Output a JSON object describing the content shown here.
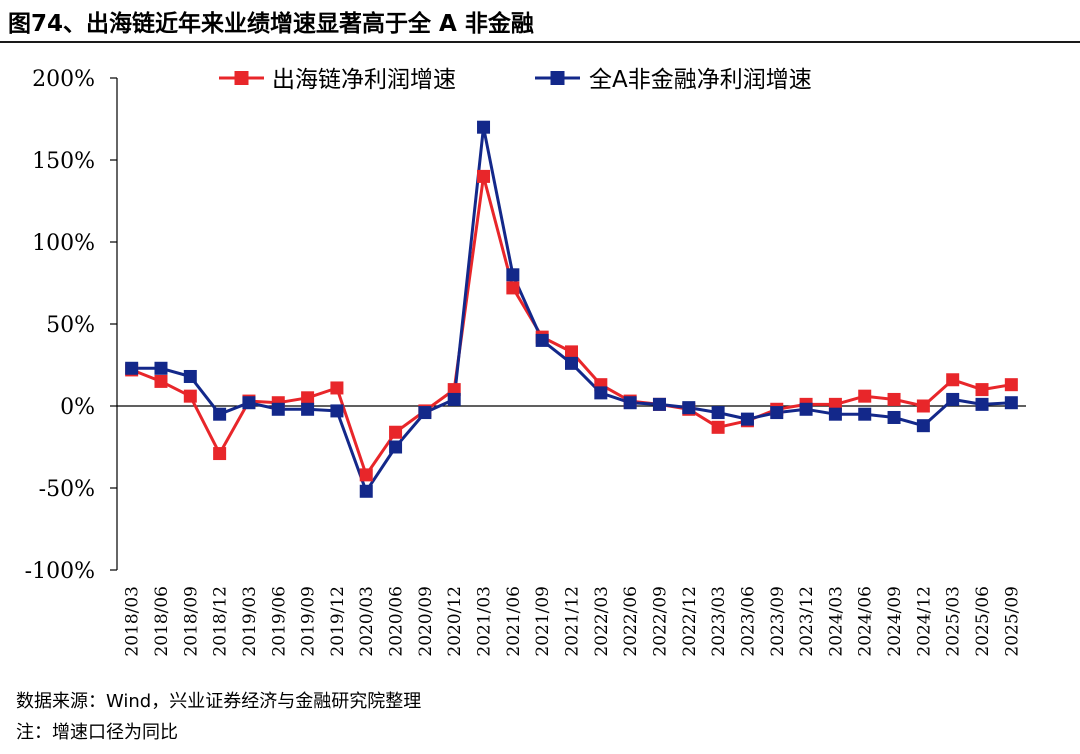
{
  "title": "图74、出海链近年来业绩增速显著高于全 A 非金融",
  "footer": {
    "source": "数据来源：Wind，兴业证券经济与金融研究院整理",
    "note": "注：增速口径为同比"
  },
  "chart_data": {
    "type": "line",
    "categories": [
      "2018/03",
      "2018/06",
      "2018/09",
      "2018/12",
      "2019/03",
      "2019/06",
      "2019/09",
      "2019/12",
      "2020/03",
      "2020/06",
      "2020/09",
      "2020/12",
      "2021/03",
      "2021/06",
      "2021/09",
      "2021/12",
      "2022/03",
      "2022/06",
      "2022/09",
      "2022/12",
      "2023/03",
      "2023/06",
      "2023/09",
      "2023/12",
      "2024/03",
      "2024/06",
      "2024/09",
      "2024/12",
      "2025/03",
      "2025/06",
      "2025/09"
    ],
    "y_ticks": [
      "200%",
      "150%",
      "100%",
      "50%",
      "0%",
      "-50%",
      "-100%"
    ],
    "ylim": [
      -100,
      200
    ],
    "grid": false,
    "legend_position": "top",
    "series": [
      {
        "name": "出海链净利润增速",
        "color": "#e8262a",
        "values": [
          22,
          15,
          6,
          -29,
          3,
          2,
          5,
          11,
          -42,
          -16,
          -3,
          10,
          140,
          72,
          42,
          33,
          13,
          3,
          1,
          -2,
          -13,
          -9,
          -2,
          1,
          1,
          6,
          4,
          0,
          16,
          10,
          13
        ]
      },
      {
        "name": "全A非金融净利润增速",
        "color": "#13288a",
        "values": [
          23,
          23,
          18,
          -5,
          2,
          -2,
          -2,
          -3,
          -52,
          -25,
          -4,
          4,
          170,
          80,
          40,
          26,
          8,
          2,
          1,
          -1,
          -4,
          -8,
          -4,
          -2,
          -5,
          -5,
          -7,
          -12,
          4,
          1,
          2
        ]
      }
    ]
  }
}
